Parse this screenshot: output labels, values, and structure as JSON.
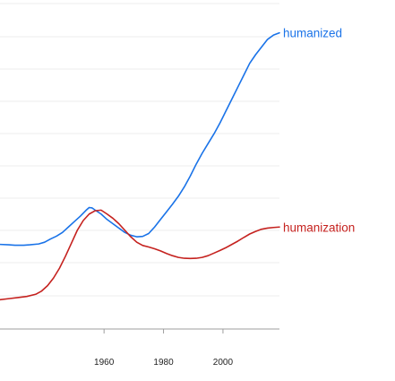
{
  "chart_data": {
    "type": "line",
    "title": "",
    "xlabel": "",
    "ylabel": "",
    "xlim": [
      1925,
      2019
    ],
    "x_ticks": [
      "1960",
      "1980",
      "2000"
    ],
    "grid": true,
    "legend": "end-of-line labels",
    "series": [
      {
        "name": "humanized",
        "color": "#1a73e8",
        "points": [
          [
            1925,
            0.39
          ],
          [
            1928,
            0.388
          ],
          [
            1930,
            0.386
          ],
          [
            1933,
            0.386
          ],
          [
            1935,
            0.388
          ],
          [
            1938,
            0.392
          ],
          [
            1940,
            0.4
          ],
          [
            1942,
            0.415
          ],
          [
            1944,
            0.428
          ],
          [
            1946,
            0.445
          ],
          [
            1948,
            0.47
          ],
          [
            1950,
            0.495
          ],
          [
            1952,
            0.52
          ],
          [
            1954,
            0.548
          ],
          [
            1955,
            0.56
          ],
          [
            1956,
            0.558
          ],
          [
            1957,
            0.548
          ],
          [
            1959,
            0.53
          ],
          [
            1961,
            0.505
          ],
          [
            1963,
            0.485
          ],
          [
            1965,
            0.465
          ],
          [
            1967,
            0.445
          ],
          [
            1969,
            0.432
          ],
          [
            1971,
            0.425
          ],
          [
            1973,
            0.427
          ],
          [
            1975,
            0.44
          ],
          [
            1977,
            0.47
          ],
          [
            1979,
            0.505
          ],
          [
            1981,
            0.54
          ],
          [
            1983,
            0.575
          ],
          [
            1985,
            0.612
          ],
          [
            1987,
            0.655
          ],
          [
            1989,
            0.705
          ],
          [
            1991,
            0.76
          ],
          [
            1993,
            0.81
          ],
          [
            1995,
            0.855
          ],
          [
            1997,
            0.9
          ],
          [
            1999,
            0.95
          ],
          [
            2001,
            1.005
          ],
          [
            2003,
            1.06
          ],
          [
            2005,
            1.115
          ],
          [
            2007,
            1.17
          ],
          [
            2009,
            1.225
          ],
          [
            2011,
            1.265
          ],
          [
            2013,
            1.3
          ],
          [
            2015,
            1.335
          ],
          [
            2017,
            1.355
          ],
          [
            2019,
            1.365
          ]
        ]
      },
      {
        "name": "humanization",
        "color": "#c5221f",
        "points": [
          [
            1925,
            0.135
          ],
          [
            1928,
            0.14
          ],
          [
            1931,
            0.145
          ],
          [
            1934,
            0.15
          ],
          [
            1937,
            0.16
          ],
          [
            1939,
            0.175
          ],
          [
            1941,
            0.2
          ],
          [
            1943,
            0.235
          ],
          [
            1945,
            0.28
          ],
          [
            1947,
            0.335
          ],
          [
            1949,
            0.395
          ],
          [
            1951,
            0.455
          ],
          [
            1953,
            0.5
          ],
          [
            1955,
            0.53
          ],
          [
            1957,
            0.545
          ],
          [
            1959,
            0.548
          ],
          [
            1961,
            0.53
          ],
          [
            1963,
            0.51
          ],
          [
            1965,
            0.485
          ],
          [
            1967,
            0.455
          ],
          [
            1969,
            0.425
          ],
          [
            1971,
            0.4
          ],
          [
            1973,
            0.385
          ],
          [
            1975,
            0.378
          ],
          [
            1977,
            0.37
          ],
          [
            1979,
            0.36
          ],
          [
            1981,
            0.348
          ],
          [
            1983,
            0.338
          ],
          [
            1985,
            0.33
          ],
          [
            1987,
            0.326
          ],
          [
            1989,
            0.325
          ],
          [
            1991,
            0.326
          ],
          [
            1993,
            0.33
          ],
          [
            1995,
            0.338
          ],
          [
            1997,
            0.35
          ],
          [
            1999,
            0.362
          ],
          [
            2001,
            0.375
          ],
          [
            2003,
            0.39
          ],
          [
            2005,
            0.405
          ],
          [
            2007,
            0.422
          ],
          [
            2009,
            0.438
          ],
          [
            2011,
            0.45
          ],
          [
            2013,
            0.46
          ],
          [
            2015,
            0.465
          ],
          [
            2017,
            0.468
          ],
          [
            2019,
            0.47
          ]
        ]
      }
    ]
  }
}
